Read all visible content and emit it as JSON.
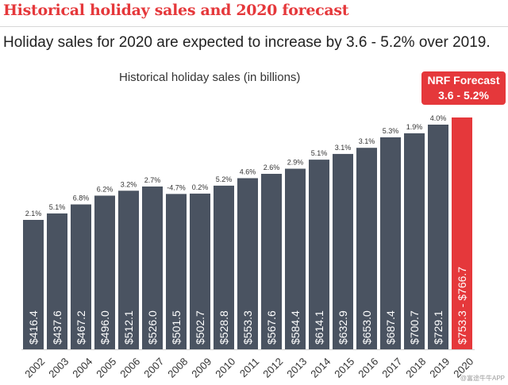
{
  "header": {
    "title": "Historical holiday sales and 2020 forecast",
    "subtitle": "Holiday sales for 2020 are expected to increase by 3.6 - 5.2% over 2019."
  },
  "forecast_callout": {
    "line1": "NRF Forecast",
    "line2": "3.6 - 5.2%"
  },
  "watermark": "@富途牛牛APP",
  "colors": {
    "bar": "#4a5361",
    "forecast": "#e5383b",
    "title": "#e5383b"
  },
  "chart_data": {
    "type": "bar",
    "title": "Historical holiday sales (in billions)",
    "categories": [
      "2002",
      "2003",
      "2004",
      "2005",
      "2006",
      "2007",
      "2008",
      "2009",
      "2010",
      "2011",
      "2012",
      "2013",
      "2014",
      "2015",
      "2016",
      "2017",
      "2018",
      "2019",
      "2020"
    ],
    "values": [
      416.4,
      437.6,
      467.2,
      496.0,
      512.1,
      526.0,
      501.5,
      502.7,
      528.8,
      553.3,
      567.6,
      584.4,
      614.1,
      632.9,
      653.0,
      687.4,
      700.7,
      729.1,
      766.7
    ],
    "value_labels": [
      "$416.4",
      "$437.6",
      "$467.2",
      "$496.0",
      "$512.1",
      "$526.0",
      "$501.5",
      "$502.7",
      "$528.8",
      "$553.3",
      "$567.6",
      "$584.4",
      "$614.1",
      "$632.9",
      "$653.0",
      "$687.4",
      "$700.7",
      "$729.1",
      "$753.3 - $766.7"
    ],
    "growth_labels": [
      "2.1%",
      "5.1%",
      "6.8%",
      "6.2%",
      "3.2%",
      "2.7%",
      "-4.7%",
      "0.2%",
      "5.2%",
      "4.6%",
      "2.6%",
      "2.9%",
      "5.1%",
      "3.1%",
      "3.1%",
      "5.3%",
      "1.9%",
      "4.0%",
      ""
    ],
    "highlight_index": 18,
    "ylim": [
      0,
      800
    ],
    "grid": false,
    "legend": "none"
  }
}
